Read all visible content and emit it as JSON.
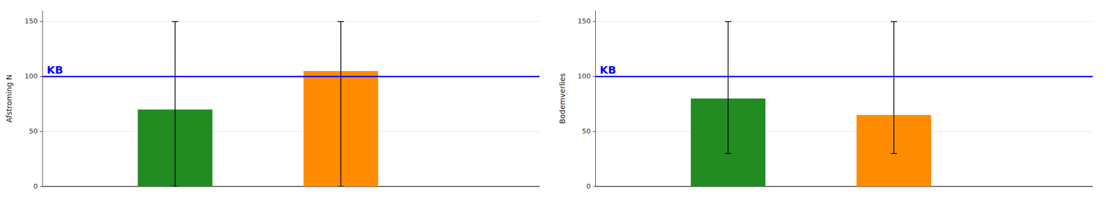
{
  "chart_data": [
    {
      "type": "bar",
      "ylabel": "Afstroming N",
      "categories": [
        null,
        null
      ],
      "values": [
        70,
        105
      ],
      "colors": [
        "#228B22",
        "#FF8C00"
      ],
      "err_up": [
        80,
        45
      ],
      "err_down": [
        70,
        105
      ],
      "reference_line": {
        "value": 100,
        "label": "KB",
        "color": "#0000FF"
      },
      "ylim": [
        0,
        160
      ],
      "yticks": [
        0,
        50,
        100,
        150
      ],
      "tick_labels": "y"
    },
    {
      "type": "bar",
      "ylabel": "Bodemverlies",
      "categories": [
        null,
        null
      ],
      "values": [
        80,
        65
      ],
      "colors": [
        "#228B22",
        "#FF8C00"
      ],
      "err_up": [
        70,
        85
      ],
      "err_down": [
        50,
        35
      ],
      "reference_line": {
        "value": 100,
        "label": "KB",
        "color": "#0000FF"
      },
      "ylim": [
        0,
        160
      ],
      "yticks": [
        0,
        50,
        100,
        150
      ],
      "tick_labels": "y"
    }
  ]
}
